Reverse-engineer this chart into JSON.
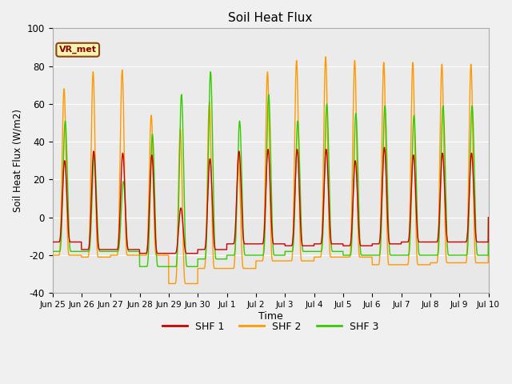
{
  "title": "Soil Heat Flux",
  "ylabel": "Soil Heat Flux (W/m2)",
  "xlabel": "Time",
  "ylim": [
    -40,
    100
  ],
  "figure_bg": "#f0f0f0",
  "plot_bg": "#e8e8e8",
  "legend_label": "VR_met",
  "series_labels": [
    "SHF 1",
    "SHF 2",
    "SHF 3"
  ],
  "series_colors": [
    "#cc0000",
    "#ff9900",
    "#33cc00"
  ],
  "tick_labels": [
    "Jun 25",
    "Jun 26",
    "Jun 27",
    "Jun 28",
    "Jun 29",
    "Jun 30",
    "Jul 1",
    "Jul 2",
    "Jul 3",
    "Jul 4",
    "Jul 5",
    "Jul 6",
    "Jul 7",
    "Jul 8",
    "Jul 9",
    "Jul 10"
  ],
  "yticks": [
    -40,
    -20,
    0,
    20,
    40,
    60,
    80,
    100
  ],
  "shf1_max": [
    30,
    35,
    34,
    33,
    5,
    31,
    35,
    36,
    36,
    36,
    30,
    37,
    33,
    34,
    34
  ],
  "shf1_min": [
    -13,
    -17,
    -17,
    -19,
    -19,
    -17,
    -14,
    -14,
    -15,
    -14,
    -15,
    -14,
    -13,
    -13,
    -13
  ],
  "shf2_max": [
    68,
    77,
    78,
    54,
    47,
    61,
    33,
    77,
    83,
    85,
    83,
    82,
    82,
    81,
    81
  ],
  "shf2_min": [
    -20,
    -21,
    -20,
    -20,
    -35,
    -27,
    -27,
    -23,
    -23,
    -21,
    -21,
    -25,
    -25,
    -24,
    -24
  ],
  "shf3_max": [
    51,
    33,
    19,
    44,
    65,
    77,
    51,
    65,
    51,
    60,
    55,
    59,
    54,
    59,
    59
  ],
  "shf3_min": [
    -18,
    -18,
    -18,
    -26,
    -26,
    -22,
    -20,
    -20,
    -18,
    -18,
    -20,
    -20,
    -20,
    -20,
    -20
  ],
  "n_days": 15,
  "points_per_day": 200
}
